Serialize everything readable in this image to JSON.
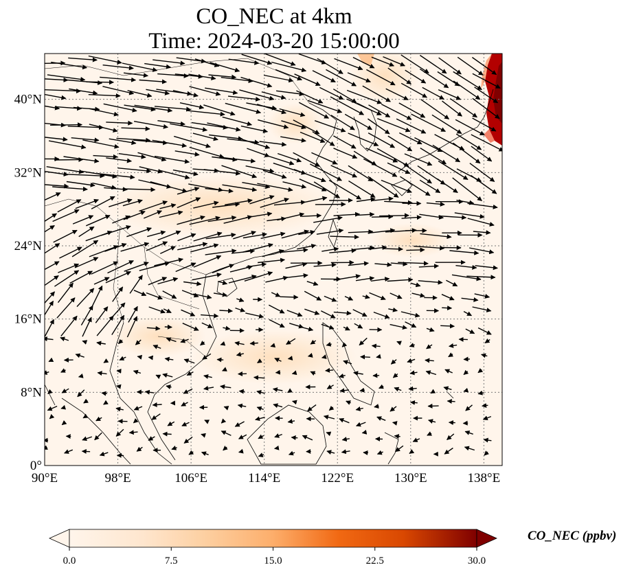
{
  "title": {
    "line1": "CO_NEC at 4km",
    "line2": "Time: 2024-03-20 15:00:00"
  },
  "map": {
    "lon_range": [
      90,
      140
    ],
    "lat_range": [
      0,
      45
    ],
    "lon_ticks": [
      "90°E",
      "98°E",
      "106°E",
      "114°E",
      "122°E",
      "130°E",
      "138°E"
    ],
    "lat_ticks": [
      "0°",
      "8°N",
      "16°N",
      "24°N",
      "32°N",
      "40°N"
    ],
    "gridlines": "dotted",
    "field_variable": "CO_NEC",
    "vectors": "wind",
    "hotspot_colors": [
      "#7f0000",
      "#b30000",
      "#e34a33"
    ],
    "background_color": "#fff5eb"
  },
  "colorbar": {
    "label": "CO_NEC (ppbv)",
    "ticks": [
      "0.0",
      "7.5",
      "15.0",
      "22.5",
      "30.0"
    ],
    "range": [
      0,
      30
    ],
    "extend": "both",
    "colors": [
      "#fff5eb",
      "#fdd0a2",
      "#fdae6b",
      "#fd8d3c",
      "#e6550d",
      "#a63603",
      "#7f0000"
    ]
  }
}
